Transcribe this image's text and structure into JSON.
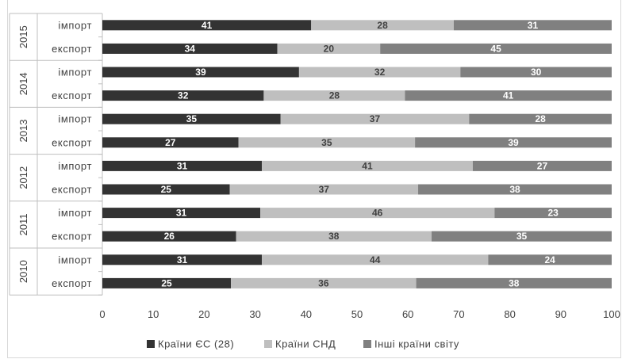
{
  "chart_data": {
    "type": "bar",
    "orientation": "horizontal",
    "stacked": true,
    "title": "",
    "xlabel": "",
    "ylabel": "",
    "xlim": [
      0,
      100
    ],
    "xticks": [
      0,
      10,
      20,
      30,
      40,
      50,
      60,
      70,
      80,
      90,
      100
    ],
    "grid": false,
    "legend_position": "bottom",
    "groups": [
      {
        "year": "2015",
        "rows": [
          {
            "label": "імпорт",
            "values": [
              41,
              28,
              31
            ]
          },
          {
            "label": "експорт",
            "values": [
              34,
              20,
              45
            ]
          }
        ]
      },
      {
        "year": "2014",
        "rows": [
          {
            "label": "імпорт",
            "values": [
              39,
              32,
              30
            ]
          },
          {
            "label": "експорт",
            "values": [
              32,
              28,
              41
            ]
          }
        ]
      },
      {
        "year": "2013",
        "rows": [
          {
            "label": "імпорт",
            "values": [
              35,
              37,
              28
            ]
          },
          {
            "label": "експорт",
            "values": [
              27,
              35,
              39
            ]
          }
        ]
      },
      {
        "year": "2012",
        "rows": [
          {
            "label": "імпорт",
            "values": [
              31,
              41,
              27
            ]
          },
          {
            "label": "експорт",
            "values": [
              25,
              37,
              38
            ]
          }
        ]
      },
      {
        "year": "2011",
        "rows": [
          {
            "label": "імпорт",
            "values": [
              31,
              46,
              23
            ]
          },
          {
            "label": "експорт",
            "values": [
              26,
              38,
              35
            ]
          }
        ]
      },
      {
        "year": "2010",
        "rows": [
          {
            "label": "імпорт",
            "values": [
              31,
              44,
              24
            ]
          },
          {
            "label": "експорт",
            "values": [
              25,
              36,
              38
            ]
          }
        ]
      }
    ],
    "series": [
      {
        "name": "Країни ЄС (28)",
        "color": "#333333"
      },
      {
        "name": "Країни СНД",
        "color": "#bfbfbf"
      },
      {
        "name": "Інші країни світу",
        "color": "#808080"
      }
    ]
  }
}
